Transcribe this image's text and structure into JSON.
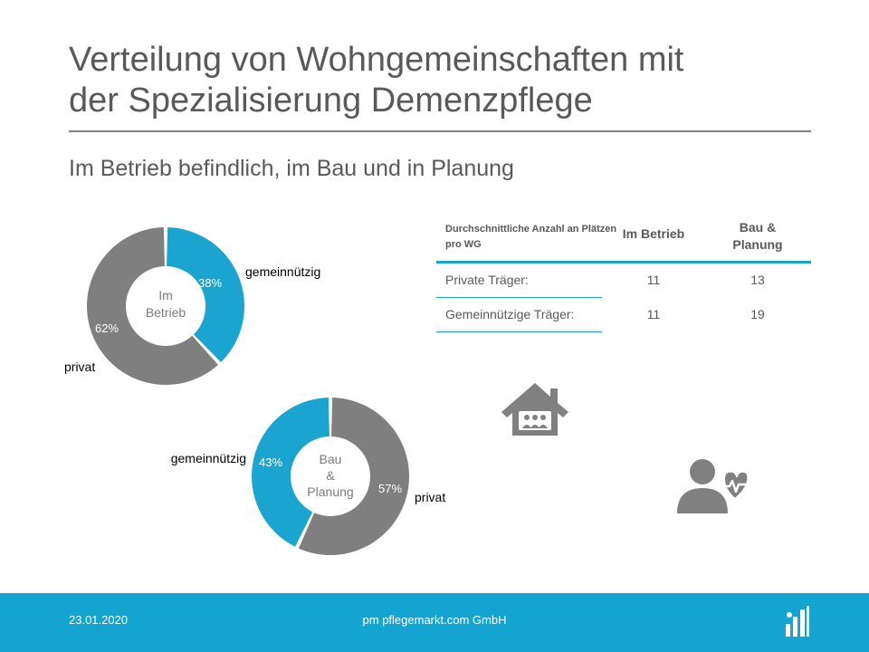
{
  "title_line1": "Verteilung von Wohngemeinschaften mit",
  "title_line2": "der Spezialisierung Demenzpflege",
  "subtitle": "Im Betrieb befindlich, im Bau und in Planung",
  "colors": {
    "blue": "#1aa5d0",
    "gray": "#7f7f7f",
    "footer": "#13a4d1"
  },
  "chart_data": [
    {
      "type": "pie",
      "title": "",
      "center_label": [
        "Im",
        "Betrieb"
      ],
      "slices": [
        {
          "label": "gemeinnützig",
          "value": 38,
          "value_label": "38%",
          "color": "#1aa5d0"
        },
        {
          "label": "privat",
          "value": 62,
          "value_label": "62%",
          "color": "#7f7f7f"
        }
      ]
    },
    {
      "type": "pie",
      "title": "",
      "center_label": [
        "Bau",
        "&",
        "Planung"
      ],
      "slices": [
        {
          "label": "privat",
          "value": 57,
          "value_label": "57%",
          "color": "#7f7f7f"
        },
        {
          "label": "gemeinnützig",
          "value": 43,
          "value_label": "43%",
          "color": "#1aa5d0"
        }
      ]
    }
  ],
  "table": {
    "header_col0": "Durchschnittliche  Anzahl an Plätzen pro WG",
    "header_col1": "Im Betrieb",
    "header_col2_line1": "Bau &",
    "header_col2_line2": "Planung",
    "rows": [
      {
        "label": "Private Träger:",
        "im_betrieb": "11",
        "bau_planung": "13"
      },
      {
        "label": "Gemeinnützige Träger:",
        "im_betrieb": "11",
        "bau_planung": "19"
      }
    ]
  },
  "icons": {
    "house": "house-with-people-icon",
    "caregiver": "person-heartbeat-icon",
    "logo": "pflegemarkt-logo-icon"
  },
  "footer": {
    "date": "23.01.2020",
    "company": "pm pflegemarkt.com GmbH"
  }
}
